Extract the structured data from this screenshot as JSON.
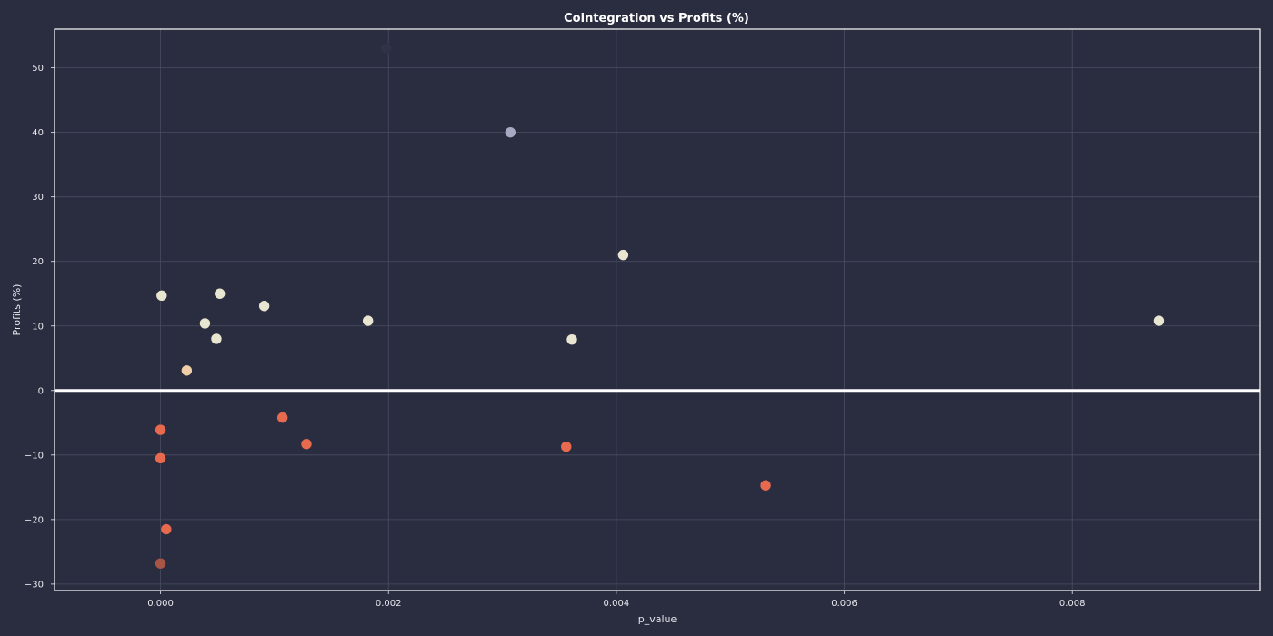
{
  "chart_data": {
    "type": "scatter",
    "title": "Cointegration vs Profits (%)",
    "xlabel": "p_value",
    "ylabel": "Profits (%)",
    "xlim": [
      -0.00093,
      0.00965
    ],
    "ylim": [
      -31,
      56
    ],
    "x_ticks": [
      0.0,
      0.002,
      0.004,
      0.006,
      0.008
    ],
    "x_tick_labels": [
      "0.000",
      "0.002",
      "0.004",
      "0.006",
      "0.008"
    ],
    "y_ticks": [
      -30,
      -20,
      -10,
      0,
      10,
      20,
      30,
      40,
      50
    ],
    "y_tick_labels": [
      "−30",
      "−20",
      "−10",
      "0",
      "10",
      "20",
      "30",
      "40",
      "50"
    ],
    "grid": true,
    "legend": "none",
    "reference_line_y": 0,
    "points": [
      {
        "x": 0.00198,
        "y": 53.0,
        "color": "#2f3347"
      },
      {
        "x": 0.00307,
        "y": 40.0,
        "color": "#a7a9c2"
      },
      {
        "x": 0.00406,
        "y": 21.0,
        "color": "#e8e6d0"
      },
      {
        "x": 1e-05,
        "y": 14.7,
        "color": "#e8e6d0"
      },
      {
        "x": 0.00052,
        "y": 15.0,
        "color": "#e8e6d0"
      },
      {
        "x": 0.00091,
        "y": 13.1,
        "color": "#e8e6d0"
      },
      {
        "x": 0.00039,
        "y": 10.4,
        "color": "#e8e6d0"
      },
      {
        "x": 0.00182,
        "y": 10.8,
        "color": "#e8e6d0"
      },
      {
        "x": 0.00876,
        "y": 10.8,
        "color": "#e8e6d0"
      },
      {
        "x": 0.00049,
        "y": 8.0,
        "color": "#e8e6d0"
      },
      {
        "x": 0.00361,
        "y": 7.9,
        "color": "#e8e6d0"
      },
      {
        "x": 0.00023,
        "y": 3.1,
        "color": "#f0cfa8"
      },
      {
        "x": 0.00107,
        "y": -4.2,
        "color": "#e86a4e"
      },
      {
        "x": 0.0,
        "y": -6.1,
        "color": "#e86a4e"
      },
      {
        "x": 0.00128,
        "y": -8.3,
        "color": "#e86a4e"
      },
      {
        "x": 0.00356,
        "y": -8.7,
        "color": "#e86a4e"
      },
      {
        "x": 0.0,
        "y": -10.5,
        "color": "#e86a4e"
      },
      {
        "x": 0.00531,
        "y": -14.7,
        "color": "#e86a4e"
      },
      {
        "x": 5e-05,
        "y": -21.5,
        "color": "#e86a4e"
      },
      {
        "x": 0.0,
        "y": -26.8,
        "color": "#a85545"
      }
    ],
    "colors": {
      "background": "#2a2d40",
      "grid": "#4a4d63",
      "frame": "#ffffff",
      "zero_line": "#ffffff",
      "text": "#e8e8ee"
    }
  }
}
